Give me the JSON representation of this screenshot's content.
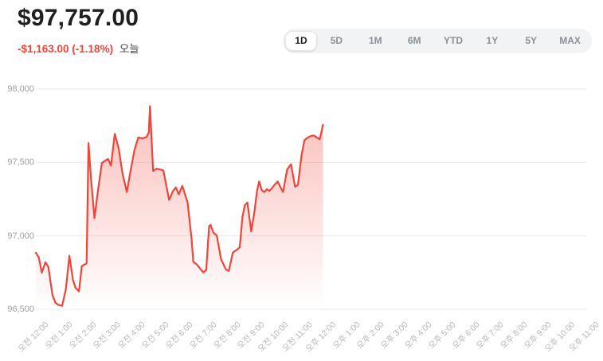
{
  "header": {
    "price": "$97,757.00",
    "change": "-$1,163.00 (-1.18%)",
    "change_period": "오늘"
  },
  "range_tabs": {
    "options": [
      "1D",
      "5D",
      "1M",
      "6M",
      "YTD",
      "1Y",
      "5Y",
      "MAX"
    ],
    "selected": "1D"
  },
  "colors": {
    "down_red": "#ef4539",
    "area_top": "rgba(239,69,57,0.38)",
    "area_bottom": "rgba(239,69,57,0.0)",
    "grid": "#e9e9e9",
    "price_text": "#1f1f1f",
    "axis_y_label": "#9aa0a6",
    "axis_x_label": "#b2b8bd"
  },
  "chart_data": {
    "type": "area",
    "title": "",
    "xlabel": "",
    "ylabel": "",
    "x_unit": "hours_from_midnight",
    "xlim_hours": [
      0,
      23
    ],
    "ylim": [
      96500,
      98000
    ],
    "grid": "horizontal-only",
    "legend": "none",
    "yticks": [
      98000,
      97500,
      97000,
      96500
    ],
    "ytick_labels": [
      "98,000",
      "97,500",
      "97,000",
      "96,500"
    ],
    "xtick_hours": [
      0,
      1,
      2,
      3,
      4,
      5,
      6,
      7,
      8,
      9,
      10,
      11,
      12,
      13,
      14,
      15,
      16,
      17,
      18,
      19,
      20,
      21,
      22,
      23
    ],
    "xtick_labels": [
      "오전 12:00",
      "오전 1:00",
      "오전 2:00",
      "오전 3:00",
      "오전 4:00",
      "오전 5:00",
      "오전 6:00",
      "오전 7:00",
      "오전 8:00",
      "오전 9:00",
      "오전 10:00",
      "오전 11:00",
      "오후 12:00",
      "오후 1:00",
      "오후 2:00",
      "오후 3:00",
      "오후 4:00",
      "오후 5:00",
      "오후 6:00",
      "오후 7:00",
      "오후 8:00",
      "오후 9:00",
      "오후 10:00",
      "오후 11:00"
    ],
    "series_name": "price_usd",
    "points": [
      [
        0.0,
        96885
      ],
      [
        0.12,
        96856
      ],
      [
        0.25,
        96749
      ],
      [
        0.4,
        96821
      ],
      [
        0.52,
        96790
      ],
      [
        0.62,
        96680
      ],
      [
        0.7,
        96595
      ],
      [
        0.82,
        96545
      ],
      [
        0.95,
        96529
      ],
      [
        1.1,
        96524
      ],
      [
        1.25,
        96635
      ],
      [
        1.4,
        96865
      ],
      [
        1.55,
        96700
      ],
      [
        1.65,
        96649
      ],
      [
        1.8,
        96622
      ],
      [
        1.92,
        96795
      ],
      [
        2.05,
        96806
      ],
      [
        2.12,
        96812
      ],
      [
        2.2,
        97632
      ],
      [
        2.3,
        97400
      ],
      [
        2.45,
        97120
      ],
      [
        2.6,
        97315
      ],
      [
        2.76,
        97497
      ],
      [
        2.9,
        97512
      ],
      [
        3.02,
        97524
      ],
      [
        3.14,
        97478
      ],
      [
        3.3,
        97695
      ],
      [
        3.46,
        97595
      ],
      [
        3.62,
        97425
      ],
      [
        3.8,
        97299
      ],
      [
        3.97,
        97455
      ],
      [
        4.13,
        97592
      ],
      [
        4.28,
        97670
      ],
      [
        4.45,
        97665
      ],
      [
        4.62,
        97672
      ],
      [
        4.72,
        97705
      ],
      [
        4.77,
        97884
      ],
      [
        4.9,
        97443
      ],
      [
        5.05,
        97458
      ],
      [
        5.2,
        97452
      ],
      [
        5.33,
        97446
      ],
      [
        5.57,
        97245
      ],
      [
        5.73,
        97305
      ],
      [
        5.85,
        97330
      ],
      [
        5.97,
        97283
      ],
      [
        6.12,
        97341
      ],
      [
        6.34,
        97227
      ],
      [
        6.5,
        96990
      ],
      [
        6.58,
        96823
      ],
      [
        6.72,
        96807
      ],
      [
        6.86,
        96778
      ],
      [
        7.0,
        96752
      ],
      [
        7.12,
        96768
      ],
      [
        7.24,
        97066
      ],
      [
        7.3,
        97075
      ],
      [
        7.42,
        97022
      ],
      [
        7.56,
        97003
      ],
      [
        7.74,
        96841
      ],
      [
        7.94,
        96773
      ],
      [
        8.06,
        96761
      ],
      [
        8.23,
        96886
      ],
      [
        8.4,
        96906
      ],
      [
        8.52,
        96923
      ],
      [
        8.63,
        97128
      ],
      [
        8.73,
        97209
      ],
      [
        8.84,
        97227
      ],
      [
        9.0,
        97030
      ],
      [
        9.13,
        97160
      ],
      [
        9.24,
        97305
      ],
      [
        9.33,
        97371
      ],
      [
        9.44,
        97312
      ],
      [
        9.55,
        97299
      ],
      [
        9.66,
        97318
      ],
      [
        9.76,
        97306
      ],
      [
        9.86,
        97324
      ],
      [
        10.0,
        97353
      ],
      [
        10.11,
        97371
      ],
      [
        10.22,
        97332
      ],
      [
        10.33,
        97299
      ],
      [
        10.5,
        97452
      ],
      [
        10.66,
        97488
      ],
      [
        10.83,
        97335
      ],
      [
        10.95,
        97347
      ],
      [
        11.1,
        97548
      ],
      [
        11.22,
        97650
      ],
      [
        11.34,
        97668
      ],
      [
        11.5,
        97681
      ],
      [
        11.63,
        97683
      ],
      [
        11.76,
        97668
      ],
      [
        11.86,
        97657
      ],
      [
        11.93,
        97705
      ],
      [
        12.0,
        97757
      ]
    ]
  }
}
